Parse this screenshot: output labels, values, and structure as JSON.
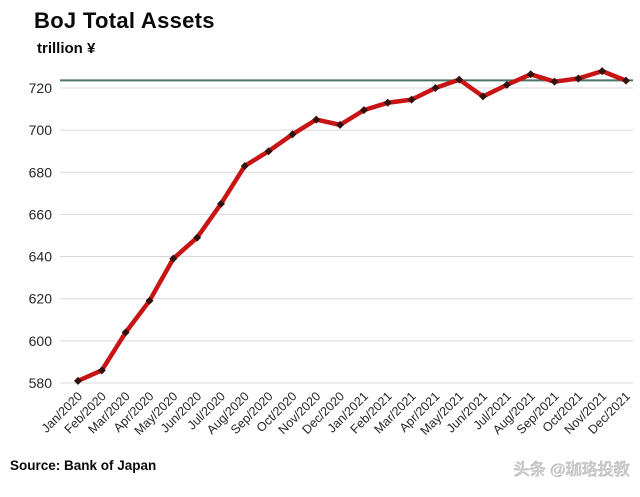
{
  "page": {
    "title": "BoJ Total Assets",
    "subtitle": "trillion ¥",
    "source": "Source: Bank of Japan",
    "watermark": "头条 @珈珞投教"
  },
  "colors": {
    "series_line": "#c81414",
    "marker": "#31100e",
    "reference_line": "#4a7164",
    "gridline": "#d8d8d8",
    "axis_text": "#262626",
    "background": "#ffffff",
    "watermark": "#c9c9c9"
  },
  "chart_data": {
    "type": "line",
    "title": "BoJ Total Assets",
    "subtitle": "trillion ¥",
    "xlabel": "",
    "ylabel": "trillion ¥",
    "grid": true,
    "legend_position": "none",
    "ylim": [
      576,
      734
    ],
    "yticks": [
      580,
      600,
      620,
      640,
      660,
      680,
      700,
      720
    ],
    "x_tick_labels": [
      "Jan/2020",
      "Feb/2020",
      "Mar/2020",
      "Apr/2020",
      "May/2020",
      "Jun/2020",
      "Jul/2020",
      "Aug/2020",
      "Sep/2020",
      "Oct/2020",
      "Nov/2020",
      "Dec/2020",
      "Jan/2021",
      "Feb/2021",
      "Mar/2021",
      "Apr/2021",
      "May/2021",
      "Jun/2021",
      "Jul/2021",
      "Aug/2021",
      "Sep/2021",
      "Oct/2021",
      "Nov/2021",
      "Dec/2021"
    ],
    "series": [
      {
        "name": "BoJ Total Assets (trillion ¥)",
        "values": [
          581,
          586,
          604,
          619,
          639,
          649,
          665,
          683,
          690,
          698,
          705,
          702.5,
          709.5,
          713,
          714.5,
          720,
          724,
          716,
          721.5,
          726.5,
          723,
          724.5,
          728,
          723.5
        ]
      }
    ],
    "reference_line": {
      "value": 723.6
    },
    "source": "Source: Bank of Japan"
  }
}
